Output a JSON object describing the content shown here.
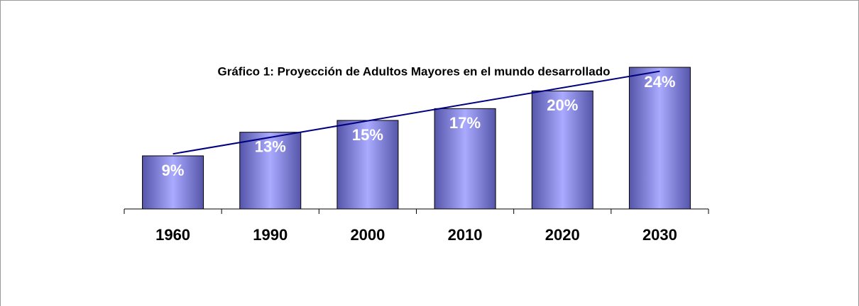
{
  "chart_data": {
    "type": "bar",
    "title": "Gráfico 1: Proyección de Adultos Mayores en el mundo desarrollado",
    "categories": [
      "1960",
      "1990",
      "2000",
      "2010",
      "2020",
      "2030"
    ],
    "values": [
      9,
      13,
      15,
      17,
      20,
      24
    ],
    "value_labels": [
      "9%",
      "13%",
      "15%",
      "17%",
      "20%",
      "24%"
    ],
    "color": "#9999ff",
    "trendline": {
      "type": "linear",
      "color": "#000080"
    }
  }
}
